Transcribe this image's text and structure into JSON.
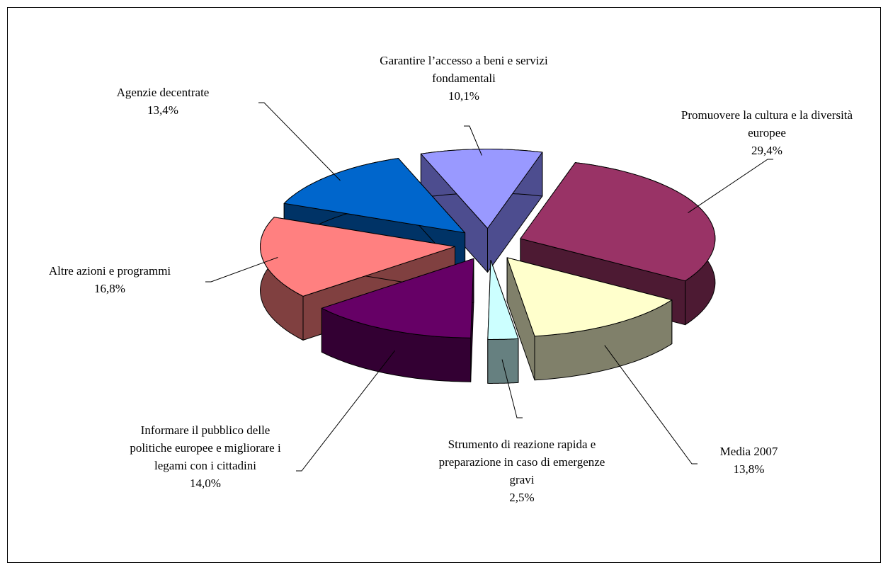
{
  "chart_data": {
    "type": "pie3d",
    "categories": [
      "Garantire l’accesso a beni e servizi fondamentali",
      "Promuovere la cultura e la diversità europee",
      "Media 2007",
      "Strumento di reazione rapida e preparazione in caso di emergenze gravi",
      "Informare il pubblico delle politiche europee e migliorare i legami con i cittadini",
      "Altre azioni e programmi",
      "Agenzie decentrate"
    ],
    "values": [
      10.1,
      29.4,
      13.8,
      2.5,
      14.0,
      16.8,
      13.4
    ],
    "value_labels": [
      "10,1%",
      "29,4%",
      "13,8%",
      "2,5%",
      "14,0%",
      "16,8%",
      "13,4%"
    ],
    "colors": [
      "#9999ff",
      "#993366",
      "#ffffcc",
      "#ccffff",
      "#660066",
      "#ff8080",
      "#0066cc"
    ],
    "side_colors": [
      "#4d4d8f",
      "#4d1a33",
      "#80806a",
      "#668080",
      "#330033",
      "#804040",
      "#003366"
    ]
  }
}
